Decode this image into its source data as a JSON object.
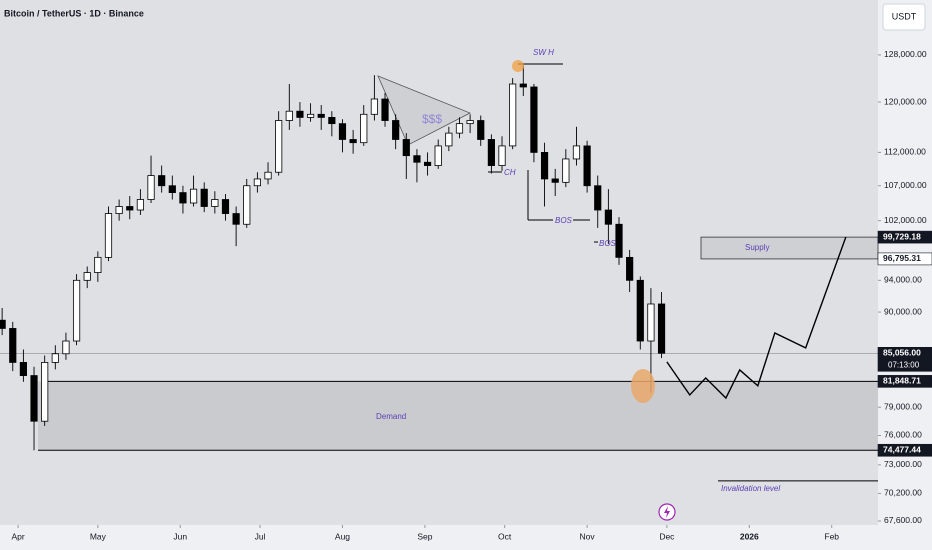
{
  "chart_data": {
    "type": "candlestick",
    "title": "Bitcoin / TetherUS · 1D · Binance",
    "currency": "USDT",
    "log": true,
    "up_color": "#ffffff",
    "down_color": "#000000",
    "x": [
      -6,
      -2,
      2,
      6,
      10,
      14,
      18,
      22,
      26,
      30,
      34,
      38,
      42,
      46,
      50,
      54,
      58,
      62,
      66,
      70,
      74,
      78,
      82,
      86,
      90,
      94,
      98,
      102,
      106,
      110,
      114,
      118,
      122,
      126,
      130,
      134,
      138,
      142,
      146,
      150,
      154,
      158,
      162,
      166,
      170,
      174,
      178,
      182,
      186,
      190,
      194,
      198,
      202,
      206,
      210,
      214,
      218,
      222,
      226,
      230,
      234,
      238,
      242
    ],
    "candles": [
      [
        89000,
        90500,
        87200,
        88000
      ],
      [
        88000,
        88800,
        83000,
        84000
      ],
      [
        84000,
        85500,
        81800,
        82500
      ],
      [
        82500,
        83500,
        74477,
        77500
      ],
      [
        77500,
        84800,
        77000,
        84000
      ],
      [
        84000,
        86000,
        83200,
        85000
      ],
      [
        85000,
        87500,
        84300,
        86500
      ],
      [
        86500,
        94800,
        86000,
        94000
      ],
      [
        94000,
        95800,
        93000,
        95000
      ],
      [
        95000,
        97800,
        93800,
        97000
      ],
      [
        97000,
        104000,
        96500,
        103000
      ],
      [
        103000,
        105000,
        102000,
        104000
      ],
      [
        104000,
        105500,
        102200,
        103500
      ],
      [
        103500,
        106500,
        102800,
        105000
      ],
      [
        105000,
        111500,
        104500,
        108500
      ],
      [
        108500,
        110000,
        106000,
        107000
      ],
      [
        107000,
        108500,
        105000,
        106000
      ],
      [
        106000,
        107000,
        103000,
        104500
      ],
      [
        104500,
        108500,
        104000,
        106500
      ],
      [
        106500,
        107500,
        103200,
        104000
      ],
      [
        104000,
        106200,
        103000,
        105000
      ],
      [
        105000,
        105800,
        102000,
        103000
      ],
      [
        103000,
        104000,
        98500,
        101500
      ],
      [
        101500,
        108000,
        101000,
        107000
      ],
      [
        107000,
        109000,
        106000,
        108000
      ],
      [
        108000,
        110500,
        107200,
        109000
      ],
      [
        109000,
        118500,
        108500,
        117000
      ],
      [
        117000,
        123000,
        115500,
        118500
      ],
      [
        118500,
        120000,
        116000,
        117500
      ],
      [
        117500,
        119800,
        116800,
        118000
      ],
      [
        118000,
        119500,
        115500,
        117500
      ],
      [
        117500,
        118500,
        114500,
        116500
      ],
      [
        116500,
        117200,
        112000,
        114000
      ],
      [
        114000,
        115500,
        111800,
        113500
      ],
      [
        113500,
        119500,
        113000,
        118000
      ],
      [
        118000,
        124500,
        117000,
        120500
      ],
      [
        120500,
        121500,
        116000,
        117000
      ],
      [
        117000,
        118000,
        112500,
        114000
      ],
      [
        114000,
        115000,
        108000,
        111500
      ],
      [
        111500,
        112500,
        107500,
        110500
      ],
      [
        110500,
        112000,
        108500,
        110000
      ],
      [
        110000,
        114000,
        109500,
        113000
      ],
      [
        113000,
        116000,
        112200,
        115000
      ],
      [
        115000,
        117500,
        114200,
        116500
      ],
      [
        116500,
        118000,
        115000,
        117000
      ],
      [
        117000,
        117800,
        113000,
        114000
      ],
      [
        114000,
        114800,
        108800,
        110000
      ],
      [
        110000,
        114500,
        109200,
        113000
      ],
      [
        113000,
        124000,
        112500,
        123000
      ],
      [
        123000,
        126200,
        121000,
        122500
      ],
      [
        122500,
        123000,
        110500,
        112000
      ],
      [
        112000,
        113500,
        104000,
        108000
      ],
      [
        108000,
        109500,
        105500,
        107500
      ],
      [
        107500,
        112500,
        106800,
        111000
      ],
      [
        111000,
        116000,
        110000,
        113000
      ],
      [
        113000,
        113800,
        106000,
        107000
      ],
      [
        107000,
        108500,
        101000,
        103500
      ],
      [
        103500,
        106500,
        98800,
        101500
      ],
      [
        101500,
        102500,
        96000,
        97000
      ],
      [
        97000,
        98000,
        92500,
        94000
      ],
      [
        94000,
        94500,
        85500,
        86500
      ],
      [
        86500,
        93000,
        80600,
        91000
      ],
      [
        91000,
        92500,
        84500,
        85056
      ]
    ],
    "xlim": [
      -6.8,
      323.4
    ],
    "xticks": [
      {
        "value": 0,
        "label": "Apr"
      },
      {
        "value": 30,
        "label": "May"
      },
      {
        "value": 61,
        "label": "Jun"
      },
      {
        "value": 91,
        "label": "Jul"
      },
      {
        "value": 122,
        "label": "Aug"
      },
      {
        "value": 153,
        "label": "Sep"
      },
      {
        "value": 183,
        "label": "Oct"
      },
      {
        "value": 214,
        "label": "Nov"
      },
      {
        "value": 244,
        "label": "Dec"
      },
      {
        "value": 275,
        "label": "2026"
      },
      {
        "value": 306,
        "label": "Feb"
      }
    ],
    "ylim": [
      67230,
      138000
    ],
    "yticks": [
      {
        "value": 128000,
        "label": "128,000.00"
      },
      {
        "value": 120000,
        "label": "120,000.00"
      },
      {
        "value": 112000,
        "label": "112,000.00"
      },
      {
        "value": 107000,
        "label": "107,000.00"
      },
      {
        "value": 102000,
        "label": "102,000.00"
      },
      {
        "value": 94000,
        "label": "94,000.00"
      },
      {
        "value": 90000,
        "label": "90,000.00"
      },
      {
        "value": 79000,
        "label": "79,000.00"
      },
      {
        "value": 76000,
        "label": "76,000.00"
      },
      {
        "value": 73000,
        "label": "73,000.00"
      },
      {
        "value": 70200,
        "label": "70,200.00"
      },
      {
        "value": 67600,
        "label": "67,600.00"
      }
    ],
    "price_levels": [
      {
        "value": 99729.18,
        "label": "99,729.18"
      },
      {
        "value": 96795.31,
        "label": "96,795.31"
      },
      {
        "value": 85056,
        "label": "85,056.00"
      },
      {
        "value": 81848.71,
        "label": "81,848.71"
      },
      {
        "value": 74477.44,
        "label": "74,477.44"
      }
    ],
    "countdown": "07:13:00",
    "annotations": {
      "swing_high": "SW H",
      "change": "CH",
      "bos_1": "BOS",
      "bos_2": "BOS",
      "liquidity": "$$$",
      "supply": "Supply",
      "demand": "Demand"
    },
    "projection": {
      "x": [
        244,
        252.6,
        258.6,
        266.2,
        271.4,
        278.2,
        284.6,
        296.2,
        311.3
      ],
      "y": [
        84060,
        80340,
        82230,
        80000,
        83140,
        81350,
        87460,
        85690,
        99729
      ]
    },
    "invalidation": {
      "label": "Invalidation level",
      "value": 71420
    }
  }
}
